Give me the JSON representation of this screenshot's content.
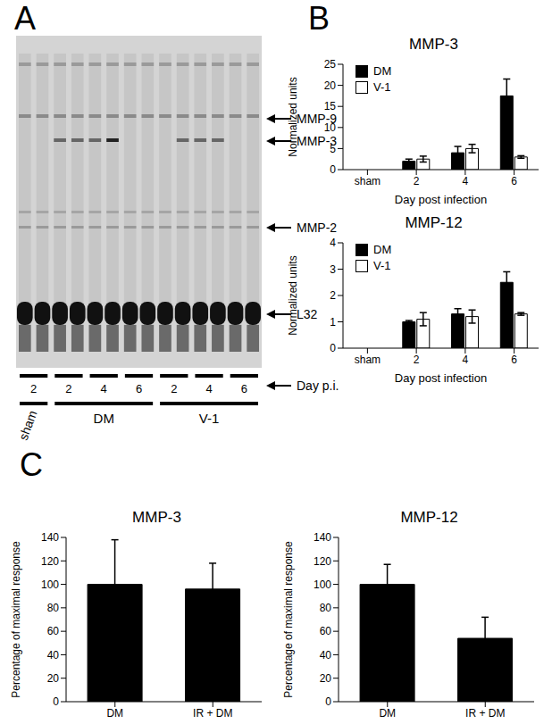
{
  "panel_labels": [
    "A",
    "B",
    "C"
  ],
  "gel": {
    "bands": [
      "MMP-9",
      "MMP-3",
      "MMP-2",
      "L32"
    ],
    "axis_label": "Day p.i.",
    "groups": [
      {
        "label": "sham",
        "days": [
          "2"
        ]
      },
      {
        "label": "DM",
        "days": [
          "2",
          "4",
          "6"
        ]
      },
      {
        "label": "V-1",
        "days": [
          "2",
          "4",
          "6"
        ]
      }
    ]
  },
  "chart_data": [
    {
      "type": "bar",
      "title": "MMP-3",
      "y_label": "Normalized units",
      "x_label": "Day post infection",
      "categories": [
        "sham",
        "2",
        "4",
        "6"
      ],
      "series": [
        {
          "name": "DM",
          "color": "#000000",
          "values": [
            null,
            2,
            4,
            17.5
          ],
          "errors": [
            null,
            0.5,
            1.5,
            4
          ]
        },
        {
          "name": "V-1",
          "color": "#ffffff",
          "values": [
            null,
            2.5,
            5,
            3
          ],
          "errors": [
            null,
            0.7,
            1,
            0.3
          ]
        }
      ],
      "ylim": [
        0,
        25
      ],
      "yticks": [
        0,
        5,
        10,
        15,
        20,
        25
      ],
      "legend": "top-left"
    },
    {
      "type": "bar",
      "title": "MMP-12",
      "y_label": "Normalized units",
      "x_label": "Day post infection",
      "categories": [
        "sham",
        "2",
        "4",
        "6"
      ],
      "series": [
        {
          "name": "DM",
          "color": "#000000",
          "values": [
            null,
            1,
            1.3,
            2.5
          ],
          "errors": [
            null,
            0.05,
            0.2,
            0.4
          ]
        },
        {
          "name": "V-1",
          "color": "#ffffff",
          "values": [
            null,
            1.1,
            1.2,
            1.3
          ],
          "errors": [
            null,
            0.25,
            0.25,
            0.05
          ]
        }
      ],
      "ylim": [
        0,
        4
      ],
      "yticks": [
        0,
        1,
        2,
        3,
        4
      ],
      "legend": "top-left"
    },
    {
      "type": "bar",
      "title": "MMP-3",
      "y_label": "Percentage of maximal response",
      "categories": [
        "DM",
        "IR + DM"
      ],
      "values": [
        100,
        96
      ],
      "errors": [
        38,
        22
      ],
      "color": "#000000",
      "ylim": [
        0,
        140
      ],
      "yticks": [
        0,
        20,
        40,
        60,
        80,
        100,
        120,
        140
      ]
    },
    {
      "type": "bar",
      "title": "MMP-12",
      "y_label": "Percentage of maximal response",
      "categories": [
        "DM",
        "IR + DM"
      ],
      "values": [
        100,
        54
      ],
      "errors": [
        17,
        18
      ],
      "color": "#000000",
      "ylim": [
        0,
        140
      ],
      "yticks": [
        0,
        20,
        40,
        60,
        80,
        100,
        120,
        140
      ]
    }
  ]
}
